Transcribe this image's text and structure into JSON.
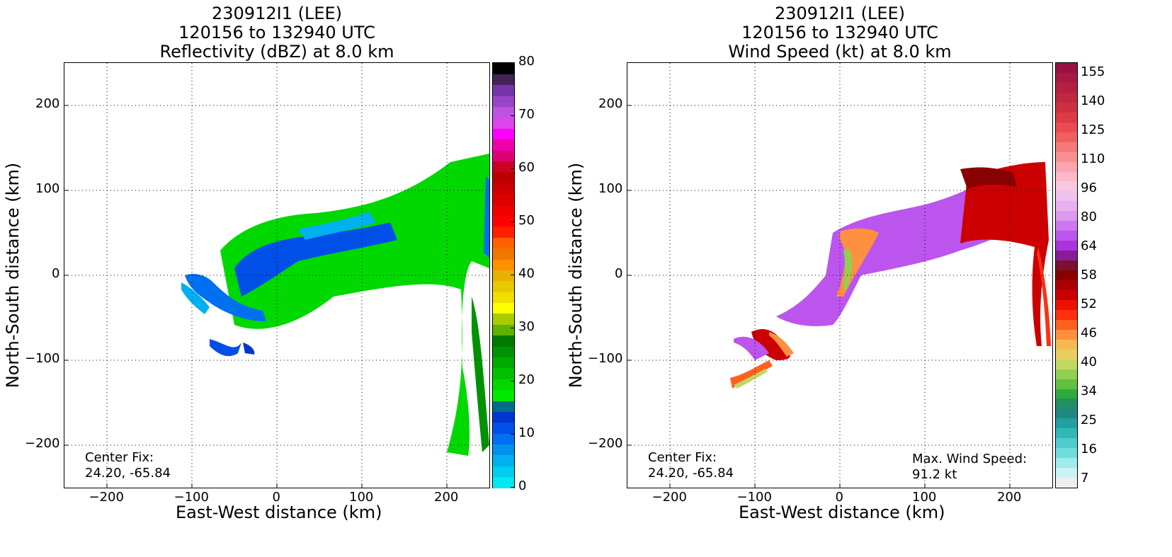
{
  "chart_data": [
    {
      "type": "heatmap",
      "title_lines": [
        "230912I1 (LEE)",
        "120156 to 132940 UTC",
        "Reflectivity (dBZ) at 8.0 km"
      ],
      "xlabel": "East-West distance (km)",
      "ylabel": "North-South distance (km)",
      "xlim": [
        -250,
        250
      ],
      "ylim": [
        -250,
        250
      ],
      "xticks": [
        -200,
        -100,
        0,
        100,
        200
      ],
      "yticks": [
        -200,
        -100,
        0,
        100,
        200
      ],
      "xtick_labels": [
        "−200",
        "−100",
        "0",
        "100",
        "200"
      ],
      "ytick_labels": [
        "−200",
        "−100",
        "0",
        "100",
        "200"
      ],
      "grid": true,
      "center_fix_label": "Center Fix:",
      "center_fix_value": "24.20, -65.84",
      "colorbar": {
        "min": 0,
        "max": 80,
        "ticks": [
          0,
          10,
          20,
          30,
          40,
          50,
          60,
          70,
          80
        ],
        "tick_labels": [
          "0",
          "10",
          "20",
          "30",
          "40",
          "50",
          "60",
          "70",
          "80"
        ],
        "colors": [
          "#00e8f0",
          "#00cdf0",
          "#00b0f0",
          "#0090f0",
          "#0070f0",
          "#0050e8",
          "#0035d0",
          "#006e88",
          "#00ea00",
          "#00d800",
          "#00c000",
          "#00aa00",
          "#009200",
          "#007a00",
          "#5cb400",
          "#a8cc00",
          "#ffff00",
          "#f0e000",
          "#e8c800",
          "#e8b000",
          "#ff9000",
          "#f07800",
          "#ff6000",
          "#ff2000",
          "#ff0000",
          "#ee0000",
          "#dd0000",
          "#cc0000",
          "#bb0000",
          "#cc0020",
          "#dd0077",
          "#ee00aa",
          "#ff00ff",
          "#dd44ee",
          "#bb55dd",
          "#9944cc",
          "#7733aa",
          "#442255",
          "#000000"
        ]
      }
    },
    {
      "type": "heatmap",
      "title_lines": [
        "230912I1 (LEE)",
        "120156 to 132940 UTC",
        "Wind Speed (kt) at 8.0 km"
      ],
      "xlabel": "East-West distance (km)",
      "ylabel": "North-South distance (km)",
      "xlim": [
        -250,
        250
      ],
      "ylim": [
        -250,
        250
      ],
      "xticks": [
        -200,
        -100,
        0,
        100,
        200
      ],
      "yticks": [
        -200,
        -100,
        0,
        100,
        200
      ],
      "xtick_labels": [
        "−200",
        "−100",
        "0",
        "100",
        "200"
      ],
      "ytick_labels": [
        "−200",
        "−100",
        "0",
        "100",
        "200"
      ],
      "grid": true,
      "center_fix_label": "Center Fix:",
      "center_fix_value": "24.20, -65.84",
      "max_wind_label": "Max. Wind Speed:",
      "max_wind_value": "91.2 kt",
      "colorbar": {
        "tick_labels_top_to_bottom": [
          "155",
          "140",
          "125",
          "110",
          "96",
          "80",
          "64",
          "58",
          "52",
          "46",
          "40",
          "34",
          "25",
          "16",
          "7"
        ],
        "colors_top_to_bottom": [
          "#9a1040",
          "#a81845",
          "#b52040",
          "#c02840",
          "#cc3040",
          "#dd3a45",
          "#ea4a50",
          "#f06060",
          "#f57a7a",
          "#f89090",
          "#fba5b0",
          "#fcb8c8",
          "#f8c8e0",
          "#f0c0ee",
          "#e8b0f0",
          "#dd99f0",
          "#cc77ee",
          "#bb55ee",
          "#aa33dd",
          "#8a1a9a",
          "#7a1030",
          "#880000",
          "#aa0000",
          "#cc0000",
          "#ee1000",
          "#ff3010",
          "#ff6020",
          "#ff9040",
          "#f8b850",
          "#e8d060",
          "#c0d860",
          "#90d050",
          "#60c040",
          "#30a840",
          "#209060",
          "#208880",
          "#20a0a0",
          "#30b8b8",
          "#50cccc",
          "#70dddd",
          "#a0ecec",
          "#c8f4f4",
          "#eeeeee"
        ]
      }
    }
  ]
}
